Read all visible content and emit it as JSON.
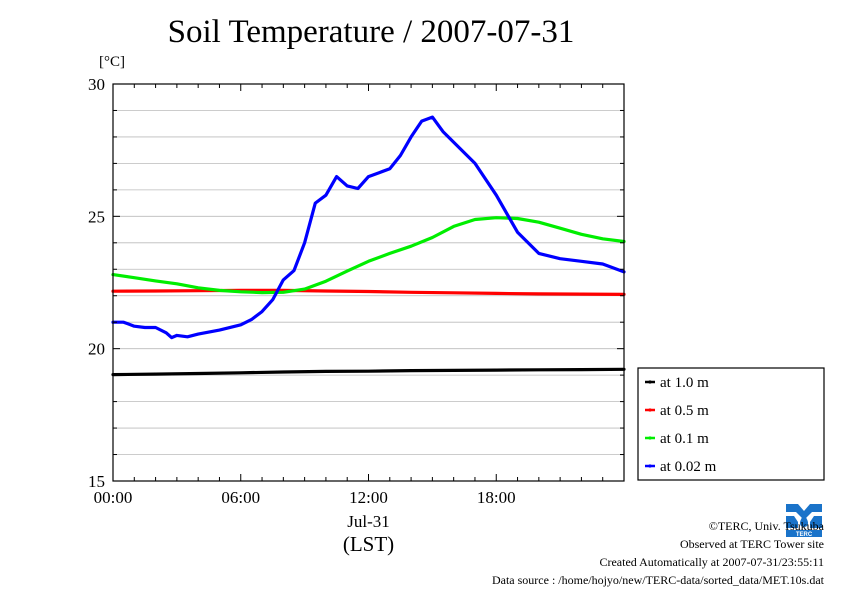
{
  "title": "Soil Temperature / 2007-07-31",
  "unit_label": "[°C]",
  "chart_data": {
    "type": "line",
    "title": "Soil Temperature / 2007-07-31",
    "ylabel": "[°C]",
    "ylim": [
      15,
      30
    ],
    "xlim": [
      0,
      24
    ],
    "y_ticks": [
      "15",
      "20",
      "25",
      "30"
    ],
    "x_ticks": [
      {
        "label": "00:00",
        "value": 0
      },
      {
        "label": "06:00",
        "value": 6
      },
      {
        "label": "12:00",
        "value": 12
      },
      {
        "label": "18:00",
        "value": 18
      }
    ],
    "date_label": "Jul-31",
    "time_zone_label": "(LST)",
    "grid": true,
    "legend_position": "right-bottom",
    "series": [
      {
        "name": "at 1.0 m",
        "color": "#000000",
        "x": [
          0,
          2,
          4,
          6,
          8,
          10,
          12,
          14,
          16,
          18,
          20,
          22,
          24
        ],
        "y": [
          19.02,
          19.04,
          19.06,
          19.09,
          19.12,
          19.14,
          19.15,
          19.17,
          19.18,
          19.19,
          19.2,
          19.21,
          19.22
        ]
      },
      {
        "name": "at 0.5 m",
        "color": "#ff0000",
        "x": [
          0,
          2,
          4,
          6,
          8,
          10,
          12,
          14,
          16,
          18,
          20,
          22,
          24
        ],
        "y": [
          22.17,
          22.18,
          22.19,
          22.2,
          22.2,
          22.18,
          22.16,
          22.13,
          22.11,
          22.09,
          22.07,
          22.06,
          22.05
        ]
      },
      {
        "name": "at 0.1 m",
        "color": "#00ee00",
        "x": [
          0,
          1,
          2,
          3,
          4,
          5,
          6,
          7,
          8,
          9,
          10,
          11,
          12,
          13,
          14,
          15,
          16,
          17,
          18,
          19,
          20,
          21,
          22,
          23,
          24
        ],
        "y": [
          22.8,
          22.68,
          22.56,
          22.45,
          22.3,
          22.2,
          22.15,
          22.12,
          22.13,
          22.25,
          22.55,
          22.93,
          23.3,
          23.6,
          23.87,
          24.2,
          24.62,
          24.88,
          24.95,
          24.92,
          24.78,
          24.55,
          24.32,
          24.15,
          24.05
        ]
      },
      {
        "name": "at 0.02 m",
        "color": "#0000ff",
        "x": [
          0,
          0.5,
          1,
          1.5,
          2,
          2.5,
          2.75,
          3,
          3.5,
          4,
          5,
          6,
          6.5,
          7,
          7.5,
          8,
          8.5,
          9,
          9.5,
          10,
          10.5,
          11,
          11.5,
          12,
          12.5,
          13,
          13.5,
          14,
          14.5,
          15,
          15.5,
          16,
          17,
          18,
          19,
          20,
          21,
          22,
          23,
          24
        ],
        "y": [
          21.0,
          21.0,
          20.85,
          20.8,
          20.8,
          20.6,
          20.42,
          20.5,
          20.45,
          20.55,
          20.7,
          20.9,
          21.1,
          21.4,
          21.85,
          22.6,
          22.95,
          24.0,
          25.5,
          25.8,
          26.5,
          26.15,
          26.05,
          26.5,
          26.65,
          26.8,
          27.3,
          28.0,
          28.6,
          28.75,
          28.2,
          27.8,
          27.0,
          25.8,
          24.4,
          23.6,
          23.4,
          23.3,
          23.2,
          22.9
        ]
      }
    ]
  },
  "footer": {
    "copyright": "©TERC, Univ. Tsukuba",
    "observed": "Observed at TERC Tower site",
    "created": "Created Automatically at 2007-07-31/23:55:11",
    "source": "Data source : /home/hojyo/new/TERC-data/sorted_data/MET.10s.dat"
  },
  "logo_text": "TERC",
  "colors": {
    "axis": "#000000",
    "grid": "#bbbbbb",
    "logo": "#1a73c9"
  }
}
